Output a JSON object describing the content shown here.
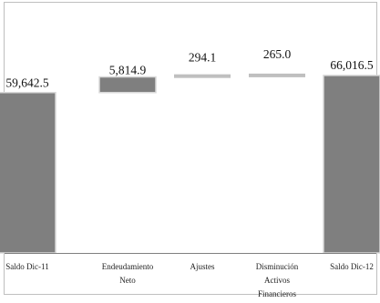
{
  "chart_data": {
    "type": "bar",
    "subtype": "waterfall",
    "categories": [
      [
        "Saldo Dic-11"
      ],
      [
        "Endeudamiento",
        "Neto"
      ],
      [
        "Ajustes"
      ],
      [
        "Disminución",
        "Activos",
        "Financieros"
      ],
      [
        "Saldo Dic-12"
      ]
    ],
    "values": [
      59642.5,
      5814.9,
      294.1,
      265.0,
      66016.5
    ],
    "data_labels": [
      "59,642.5",
      "5,814.9",
      "294.1",
      "265.0",
      "66,016.5"
    ],
    "kinds": [
      "total",
      "increase",
      "increase",
      "increase",
      "total"
    ],
    "title": "",
    "xlabel": "",
    "ylabel": "",
    "ylim": [
      0,
      90000
    ],
    "grid": false,
    "legend": "none",
    "colors": {
      "total": "#7f7f7f",
      "step": "#7f7f7f",
      "thin_step": "#bfbfbf",
      "bar_edge": "#d9d9d9",
      "axis": "#7f7f7f",
      "frame": "#bfbfbf"
    }
  }
}
